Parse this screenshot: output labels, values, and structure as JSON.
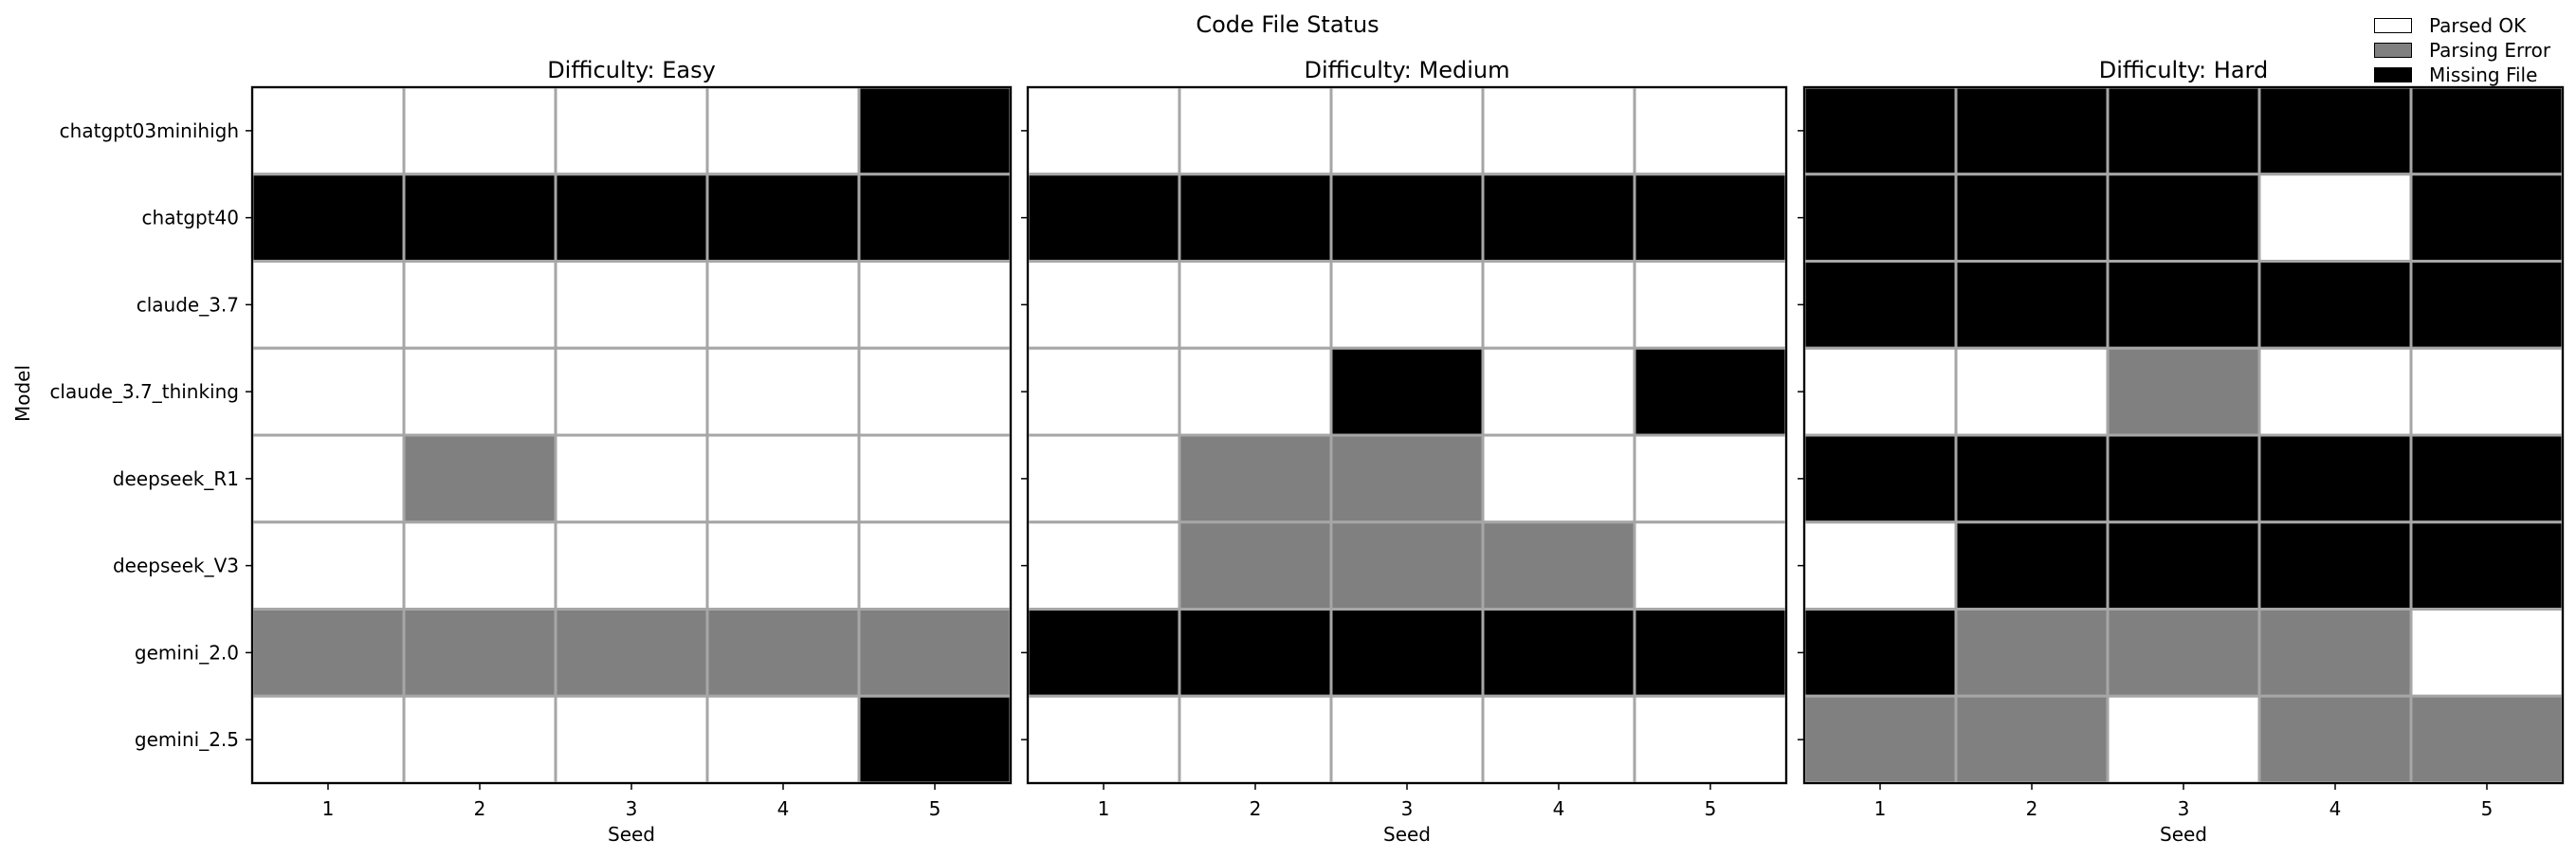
{
  "chart_data": {
    "type": "heatmap",
    "title": "Code File Status",
    "ylabel": "Model",
    "xlabel": "Seed",
    "rows": [
      "chatgpt03minihigh",
      "chatgpt40",
      "claude_3.7",
      "claude_3.7_thinking",
      "deepseek_R1",
      "deepseek_V3",
      "gemini_2.0",
      "gemini_2.5"
    ],
    "columns": [
      "1",
      "2",
      "3",
      "4",
      "5"
    ],
    "legend": {
      "position": "top-right",
      "items": [
        {
          "key": "ok",
          "label": "Parsed OK",
          "color": "#ffffff"
        },
        {
          "key": "error",
          "label": "Parsing Error",
          "color": "#808080"
        },
        {
          "key": "missing",
          "label": "Missing File",
          "color": "#000000"
        }
      ]
    },
    "panels": [
      {
        "title": "Difficulty: Easy",
        "xlabel": "Seed",
        "values": [
          [
            "ok",
            "ok",
            "ok",
            "ok",
            "missing"
          ],
          [
            "missing",
            "missing",
            "missing",
            "missing",
            "missing"
          ],
          [
            "ok",
            "ok",
            "ok",
            "ok",
            "ok"
          ],
          [
            "ok",
            "ok",
            "ok",
            "ok",
            "ok"
          ],
          [
            "ok",
            "error",
            "ok",
            "ok",
            "ok"
          ],
          [
            "ok",
            "ok",
            "ok",
            "ok",
            "ok"
          ],
          [
            "error",
            "error",
            "error",
            "error",
            "error"
          ],
          [
            "ok",
            "ok",
            "ok",
            "ok",
            "missing"
          ]
        ]
      },
      {
        "title": "Difficulty: Medium",
        "xlabel": "Seed",
        "values": [
          [
            "ok",
            "ok",
            "ok",
            "ok",
            "ok"
          ],
          [
            "missing",
            "missing",
            "missing",
            "missing",
            "missing"
          ],
          [
            "ok",
            "ok",
            "ok",
            "ok",
            "ok"
          ],
          [
            "ok",
            "ok",
            "missing",
            "ok",
            "missing"
          ],
          [
            "ok",
            "error",
            "error",
            "ok",
            "ok"
          ],
          [
            "ok",
            "error",
            "error",
            "error",
            "ok"
          ],
          [
            "missing",
            "missing",
            "missing",
            "missing",
            "missing"
          ],
          [
            "ok",
            "ok",
            "ok",
            "ok",
            "ok"
          ]
        ]
      },
      {
        "title": "Difficulty: Hard",
        "xlabel": "Seed",
        "values": [
          [
            "missing",
            "missing",
            "missing",
            "missing",
            "missing"
          ],
          [
            "missing",
            "missing",
            "missing",
            "ok",
            "missing"
          ],
          [
            "missing",
            "missing",
            "missing",
            "missing",
            "missing"
          ],
          [
            "ok",
            "ok",
            "error",
            "ok",
            "ok"
          ],
          [
            "missing",
            "missing",
            "missing",
            "missing",
            "missing"
          ],
          [
            "ok",
            "missing",
            "missing",
            "missing",
            "missing"
          ],
          [
            "missing",
            "error",
            "error",
            "error",
            "ok"
          ],
          [
            "error",
            "error",
            "ok",
            "error",
            "error"
          ]
        ]
      }
    ]
  }
}
